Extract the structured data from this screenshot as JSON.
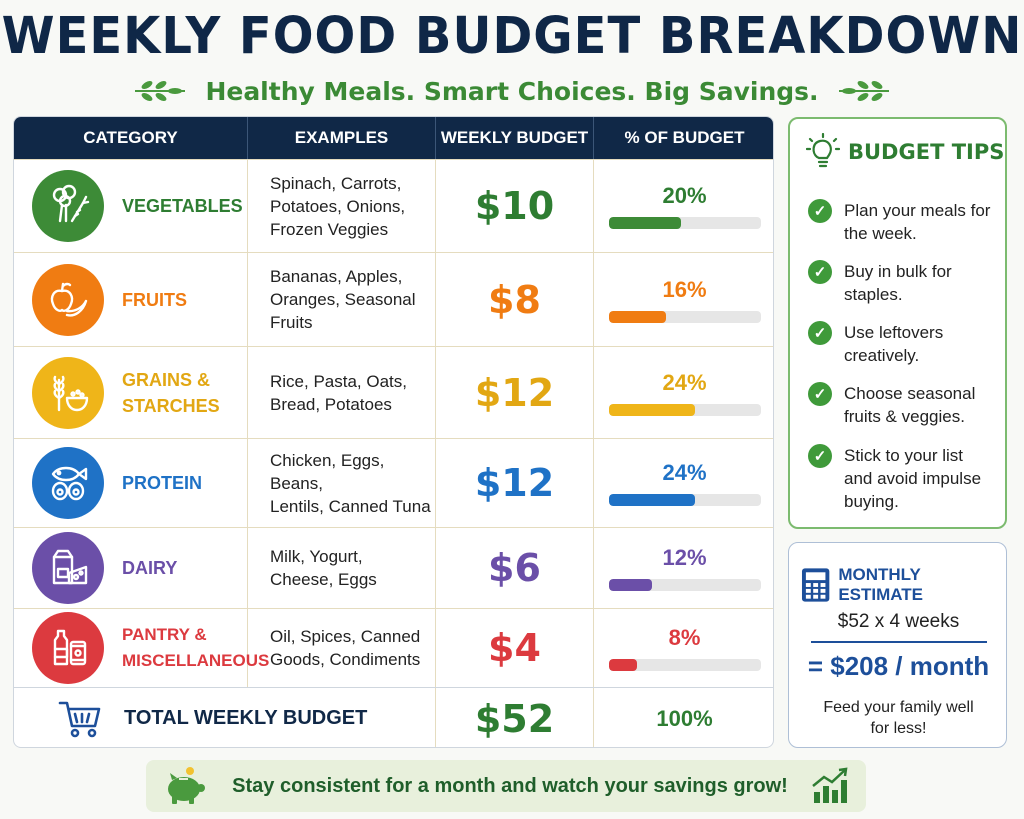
{
  "header": {
    "title": "WEEKLY FOOD BUDGET BREAKDOWN",
    "subtitle": "Healthy Meals. Smart Choices. Big Savings."
  },
  "table": {
    "columns": [
      "CATEGORY",
      "EXAMPLES",
      "WEEKLY BUDGET",
      "% OF BUDGET"
    ],
    "rows": [
      {
        "category": "VEGETABLES",
        "examples": "Spinach, Carrots,\nPotatoes, Onions,\nFrozen Veggies",
        "budget": "$10",
        "percent_label": "20%",
        "percent": 20,
        "color": "#3d8b37",
        "icon": "vegetables-icon"
      },
      {
        "category": "FRUITS",
        "examples": "Bananas, Apples,\nOranges, Seasonal\nFruits",
        "budget": "$8",
        "percent_label": "16%",
        "percent": 16,
        "color": "#f07c12",
        "icon": "fruits-icon"
      },
      {
        "category": "GRAINS &\nSTARCHES",
        "examples": "Rice, Pasta, Oats,\nBread, Potatoes",
        "budget": "$12",
        "percent_label": "24%",
        "percent": 24,
        "color": "#efb519",
        "icon": "grains-icon"
      },
      {
        "category": "PROTEIN",
        "examples": "Chicken, Eggs, Beans,\nLentils, Canned Tuna",
        "budget": "$12",
        "percent_label": "24%",
        "percent": 24,
        "color": "#1f72c6",
        "icon": "protein-icon"
      },
      {
        "category": "DAIRY",
        "examples": "Milk, Yogurt,\nCheese, Eggs",
        "budget": "$6",
        "percent_label": "12%",
        "percent": 12,
        "color": "#6b4fa8",
        "icon": "dairy-icon"
      },
      {
        "category": "PANTRY &\nMISCELLANEOUS",
        "examples": "Oil, Spices, Canned\nGoods, Condiments",
        "budget": "$4",
        "percent_label": "8%",
        "percent": 8,
        "color": "#dc3a3f",
        "icon": "pantry-icon"
      }
    ],
    "total": {
      "label": "TOTAL WEEKLY BUDGET",
      "value": "$52",
      "percent": "100%"
    }
  },
  "tips": {
    "title": "BUDGET TIPS",
    "items": [
      "Plan your meals for the week.",
      "Buy in bulk for staples.",
      "Use leftovers creatively.",
      "Choose seasonal fruits & veggies.",
      "Stick to your list and avoid impulse buying."
    ]
  },
  "monthly": {
    "title": "MONTHLY ESTIMATE",
    "calc": "$52 x 4 weeks",
    "result": "= $208 / month",
    "note": "Feed your family well for less!"
  },
  "banner": {
    "text": "Stay consistent for a month and watch your savings grow!"
  }
}
